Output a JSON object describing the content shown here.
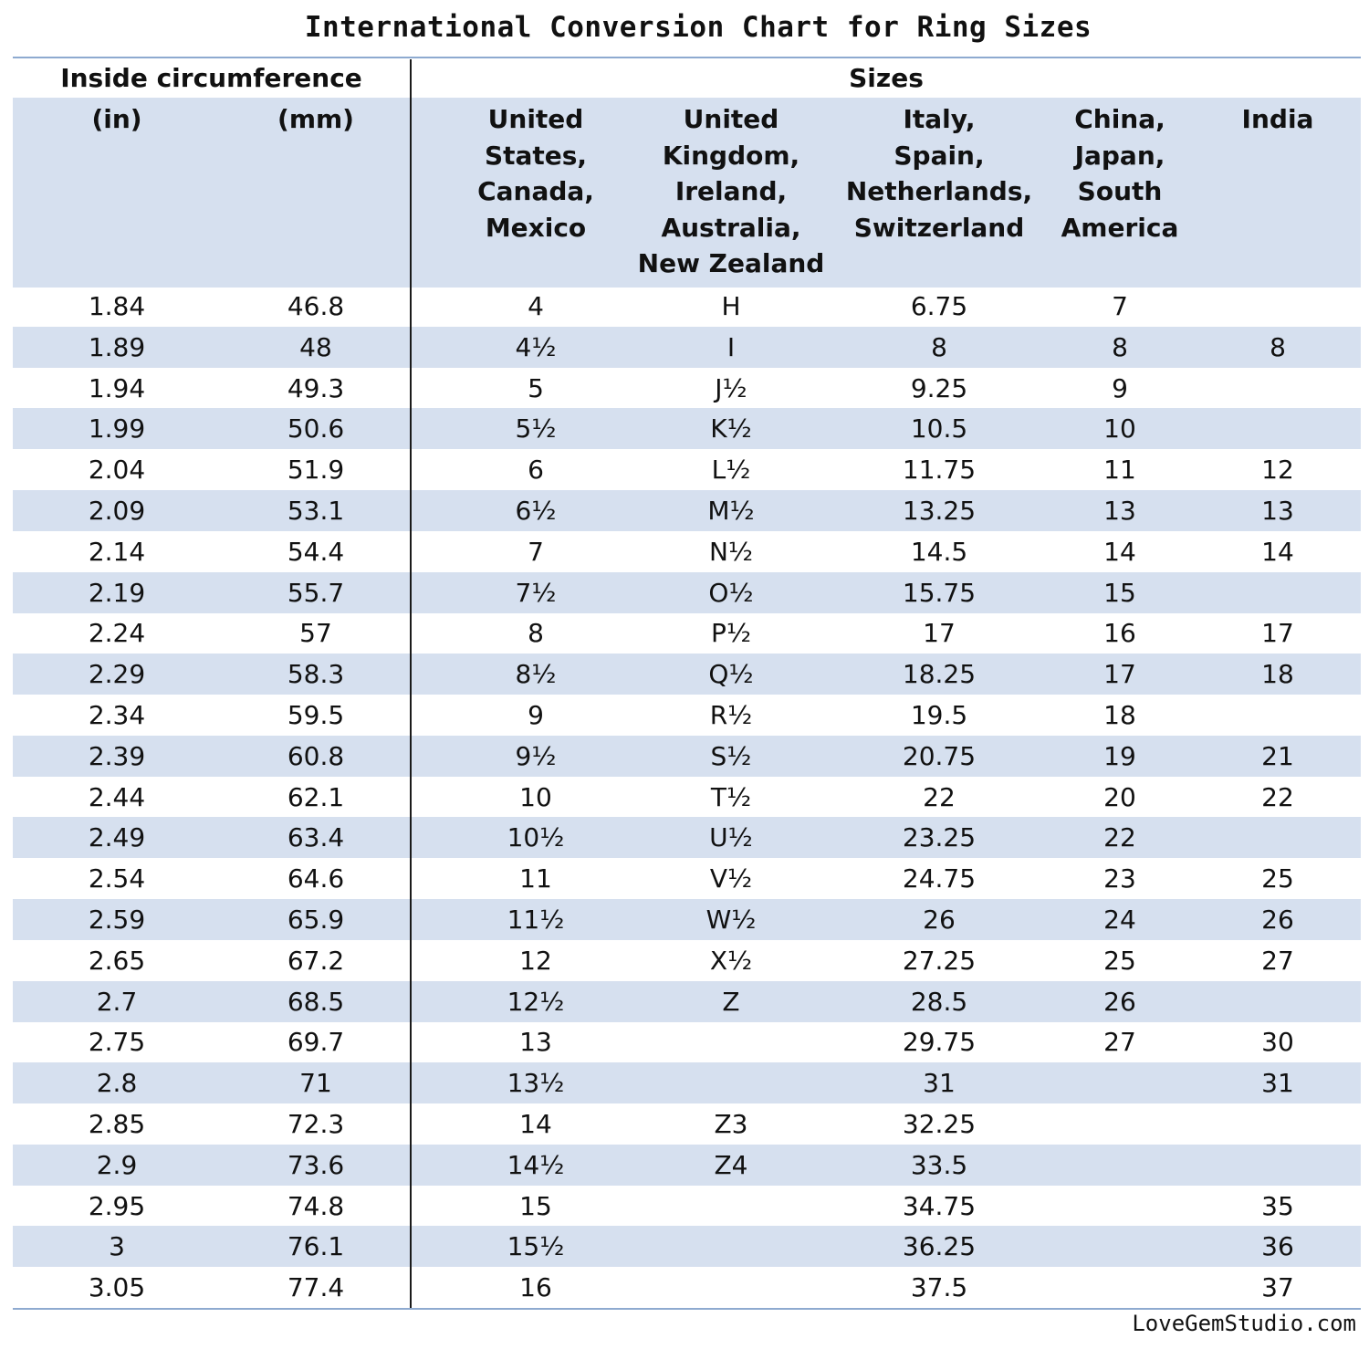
{
  "title": "International Conversion Chart for Ring Sizes",
  "groups": {
    "circumference": "Inside circumference",
    "sizes": "Sizes"
  },
  "columns": [
    "(in)",
    "(mm)",
    "United\nStates,\nCanada,\nMexico",
    "United\nKingdom,\nIreland,\nAustralia,\nNew Zealand",
    "Italy,\nSpain,\nNetherlands,\nSwitzerland",
    "China,\nJapan,\nSouth\nAmerica",
    "India"
  ],
  "colors": {
    "accent": "#d6e0ef",
    "rule": "#8eaad0"
  },
  "chart_data": {
    "type": "table",
    "title": "International Conversion Chart for Ring Sizes",
    "rows": [
      [
        "1.84",
        "46.8",
        "4",
        "H",
        "6.75",
        "7",
        ""
      ],
      [
        "1.89",
        "48",
        "4½",
        "I",
        "8",
        "8",
        "8"
      ],
      [
        "1.94",
        "49.3",
        "5",
        "J½",
        "9.25",
        "9",
        ""
      ],
      [
        "1.99",
        "50.6",
        "5½",
        "K½",
        "10.5",
        "10",
        ""
      ],
      [
        "2.04",
        "51.9",
        "6",
        "L½",
        "11.75",
        "11",
        "12"
      ],
      [
        "2.09",
        "53.1",
        "6½",
        "M½",
        "13.25",
        "13",
        "13"
      ],
      [
        "2.14",
        "54.4",
        "7",
        "N½",
        "14.5",
        "14",
        "14"
      ],
      [
        "2.19",
        "55.7",
        "7½",
        "O½",
        "15.75",
        "15",
        ""
      ],
      [
        "2.24",
        "57",
        "8",
        "P½",
        "17",
        "16",
        "17"
      ],
      [
        "2.29",
        "58.3",
        "8½",
        "Q½",
        "18.25",
        "17",
        "18"
      ],
      [
        "2.34",
        "59.5",
        "9",
        "R½",
        "19.5",
        "18",
        ""
      ],
      [
        "2.39",
        "60.8",
        "9½",
        "S½",
        "20.75",
        "19",
        "21"
      ],
      [
        "2.44",
        "62.1",
        "10",
        "T½",
        "22",
        "20",
        "22"
      ],
      [
        "2.49",
        "63.4",
        "10½",
        "U½",
        "23.25",
        "22",
        ""
      ],
      [
        "2.54",
        "64.6",
        "11",
        "V½",
        "24.75",
        "23",
        "25"
      ],
      [
        "2.59",
        "65.9",
        "11½",
        "W½",
        "26",
        "24",
        "26"
      ],
      [
        "2.65",
        "67.2",
        "12",
        "X½",
        "27.25",
        "25",
        "27"
      ],
      [
        "2.7",
        "68.5",
        "12½",
        "Z",
        "28.5",
        "26",
        ""
      ],
      [
        "2.75",
        "69.7",
        "13",
        "",
        "29.75",
        "27",
        "30"
      ],
      [
        "2.8",
        "71",
        "13½",
        "",
        "31",
        "",
        "31"
      ],
      [
        "2.85",
        "72.3",
        "14",
        "Z3",
        "32.25",
        "",
        ""
      ],
      [
        "2.9",
        "73.6",
        "14½",
        "Z4",
        "33.5",
        "",
        ""
      ],
      [
        "2.95",
        "74.8",
        "15",
        "",
        "34.75",
        "",
        "35"
      ],
      [
        "3",
        "76.1",
        "15½",
        "",
        "36.25",
        "",
        "36"
      ],
      [
        "3.05",
        "77.4",
        "16",
        "",
        "37.5",
        "",
        "37"
      ]
    ]
  },
  "credit": "LoveGemStudio.com"
}
